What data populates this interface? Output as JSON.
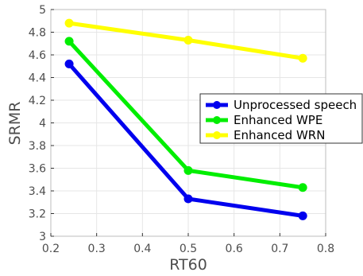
{
  "chart_data": {
    "type": "line",
    "xlabel": "RT60",
    "ylabel": "SRMR",
    "xlim": [
      0.2,
      0.8
    ],
    "ylim": [
      3,
      5
    ],
    "xticks": [
      "0.2",
      "0.3",
      "0.4",
      "0.5",
      "0.6",
      "0.7",
      "0.8"
    ],
    "yticks": [
      "3",
      "3.2",
      "3.4",
      "3.6",
      "3.8",
      "4",
      "4.2",
      "4.4",
      "4.6",
      "4.8",
      "5"
    ],
    "x": [
      0.24,
      0.5,
      0.75
    ],
    "grid": true,
    "legend_position": "right",
    "series": [
      {
        "name": "Unprocessed speech",
        "color": "#0000ee",
        "values": [
          4.52,
          3.33,
          3.18
        ]
      },
      {
        "name": "Enhanced WPE",
        "color": "#00ee00",
        "values": [
          4.72,
          3.58,
          3.43
        ]
      },
      {
        "name": "Enhanced WRN",
        "color": "#ffff00",
        "values": [
          4.88,
          4.73,
          4.57
        ]
      }
    ]
  }
}
